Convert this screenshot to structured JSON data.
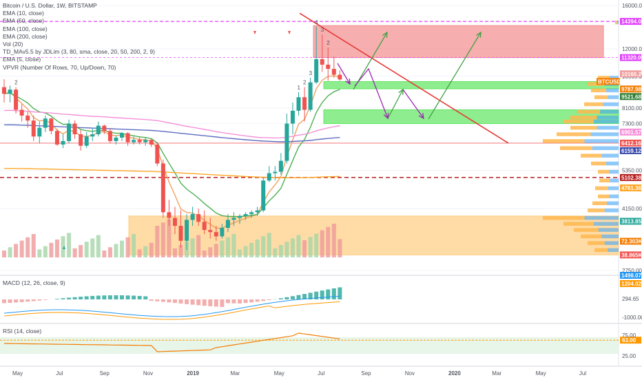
{
  "title": "Bitcoin / U.S. Dollar, 1W, BITSTAMP",
  "indicators": [
    "EMA (10, close)",
    "EMA (50, close)",
    "EMA (100, close)",
    "EMA (200, close)",
    "Vol (20)",
    "TD_MAv5.5 by JDLim (3, 80, sma, close, 20, 50, 200, 2, 9)",
    "EMA (5, close)",
    "VPVR (Number Of Rows, 70, Up/Down, 70)"
  ],
  "macd_label": "MACD (12, 26, close, 9)",
  "rsi_label": "RSI (14, close)",
  "colors": {
    "up": "#26a69a",
    "down": "#ef5350",
    "ema5": "#f0a060",
    "ema10": "#4caf50",
    "ema50": "#f48fd8",
    "ema100": "#5c6bc0",
    "ema200": "#ffa726",
    "trendline": "#e53935",
    "arrow_green": "#43a047",
    "arrow_purple": "#9c27b0"
  },
  "chart_data": {
    "type": "candlestick",
    "price_scale": "log",
    "y_ticks": [
      16000,
      12000,
      10000,
      8100,
      7300,
      5350,
      4150,
      2750
    ],
    "x_ticks": [
      "May",
      "Jul",
      "Sep",
      "Nov",
      "2019",
      "Mar",
      "May",
      "Jul",
      "Sep",
      "Nov",
      "2020",
      "Mar",
      "May",
      "Jul"
    ],
    "price_tags": [
      {
        "label": "14394.00",
        "value": 14394,
        "color": "#e040fb"
      },
      {
        "label": "11320.00",
        "value": 11320,
        "color": "#e040fb"
      },
      {
        "label": "10160.24",
        "value": 10160,
        "color": "#ef9a9a"
      },
      {
        "label": "BTCUSD",
        "value": 9790,
        "color": "#f57c00"
      },
      {
        "label": "9787.98",
        "value": 9788,
        "color": "#f57c00"
      },
      {
        "label": "9521.68",
        "value": 9522,
        "color": "#2e7d32"
      },
      {
        "label": "6901.57",
        "value": 6901,
        "color": "#f48fd8"
      },
      {
        "label": "6412.16",
        "value": 6412,
        "color": "#ef5350"
      },
      {
        "label": "6159.12",
        "value": 6159,
        "color": "#3949ab"
      },
      {
        "label": "5102.38",
        "value": 5102,
        "color": "#b71c1c"
      },
      {
        "label": "4761.36",
        "value": 4761,
        "color": "#ffa726"
      },
      {
        "label": "3813.85",
        "value": 3814,
        "color": "#26a69a"
      },
      {
        "label": "72.303K",
        "value": 3340,
        "color": "#f57c00"
      },
      {
        "label": "38.865K",
        "value": 3050,
        "color": "#ef5350"
      }
    ],
    "candles": [
      [
        9300,
        9800,
        8400,
        8900
      ],
      [
        8900,
        9400,
        8400,
        9150
      ],
      [
        9150,
        9300,
        7800,
        8000
      ],
      [
        8000,
        8300,
        7400,
        7700
      ],
      [
        7700,
        7900,
        7100,
        7450
      ],
      [
        7450,
        7700,
        6500,
        6700
      ],
      [
        6700,
        7400,
        6400,
        7100
      ],
      [
        7100,
        7700,
        6900,
        7550
      ],
      [
        7550,
        7600,
        6800,
        6950
      ],
      [
        6950,
        7050,
        6300,
        6350
      ],
      [
        6350,
        6800,
        6200,
        6500
      ],
      [
        6500,
        7500,
        6400,
        7300
      ],
      [
        7300,
        7450,
        6600,
        6800
      ],
      [
        6800,
        7000,
        6100,
        6300
      ],
      [
        6300,
        6900,
        6200,
        6700
      ],
      [
        6700,
        7100,
        6500,
        6800
      ],
      [
        6800,
        7400,
        6700,
        7200
      ],
      [
        7200,
        7250,
        6800,
        6950
      ],
      [
        6950,
        7050,
        6400,
        6500
      ],
      [
        6500,
        6750,
        6350,
        6650
      ],
      [
        6650,
        6900,
        6500,
        6850
      ],
      [
        6850,
        6900,
        6300,
        6450
      ],
      [
        6450,
        6700,
        6350,
        6550
      ],
      [
        6550,
        6700,
        6350,
        6450
      ],
      [
        6450,
        6650,
        6300,
        6550
      ],
      [
        6550,
        6600,
        6250,
        6350
      ],
      [
        6350,
        6450,
        5500,
        5600
      ],
      [
        5600,
        5750,
        3900,
        4050
      ],
      [
        4050,
        4400,
        3700,
        3900
      ],
      [
        3900,
        4200,
        3500,
        3700
      ],
      [
        3700,
        4100,
        3200,
        3350
      ],
      [
        3350,
        4000,
        3150,
        3850
      ],
      [
        3850,
        4200,
        3700,
        4000
      ],
      [
        4000,
        4150,
        3700,
        3800
      ],
      [
        3800,
        4100,
        3500,
        3600
      ],
      [
        3600,
        3900,
        3400,
        3550
      ],
      [
        3550,
        3700,
        3350,
        3450
      ],
      [
        3450,
        3750,
        3400,
        3650
      ],
      [
        3650,
        4000,
        3550,
        3850
      ],
      [
        3850,
        4050,
        3700,
        3900
      ],
      [
        3900,
        4000,
        3750,
        3950
      ],
      [
        3950,
        4050,
        3850,
        4000
      ],
      [
        4000,
        4100,
        3900,
        4050
      ],
      [
        4050,
        4200,
        3950,
        4100
      ],
      [
        4100,
        5100,
        4050,
        5000
      ],
      [
        5000,
        5500,
        4950,
        5250
      ],
      [
        5250,
        5500,
        5000,
        5300
      ],
      [
        5300,
        6000,
        5200,
        5700
      ],
      [
        5700,
        7800,
        5600,
        7300
      ],
      [
        7300,
        8400,
        6800,
        7950
      ],
      [
        7950,
        9000,
        7700,
        8700
      ],
      [
        8700,
        9300,
        7400,
        8000
      ],
      [
        8000,
        9900,
        7900,
        9600
      ],
      [
        9600,
        13900,
        9500,
        11200
      ],
      [
        11200,
        13200,
        10300,
        10800
      ],
      [
        10800,
        12100,
        9700,
        10500
      ],
      [
        10500,
        11400,
        9900,
        10100
      ],
      [
        10100,
        10400,
        9700,
        9790
      ]
    ],
    "zones": [
      {
        "name": "resistance",
        "from": 11320,
        "to": 14000,
        "color": "#f28b8b"
      },
      {
        "name": "support-1",
        "from": 9200,
        "to": 9650,
        "color": "#5ee65e"
      },
      {
        "name": "support-2",
        "from": 7300,
        "to": 8000,
        "color": "#5ee65e"
      },
      {
        "name": "accumulation",
        "from": 3050,
        "to": 3950,
        "color": "#ffcc80"
      }
    ],
    "macd_ticks": [
      "1498.07",
      "1204.02",
      "294.65",
      "-1000.00"
    ],
    "rsi_ticks": [
      "75.00",
      "63.00",
      "25.00"
    ],
    "rsi_last": 63
  }
}
